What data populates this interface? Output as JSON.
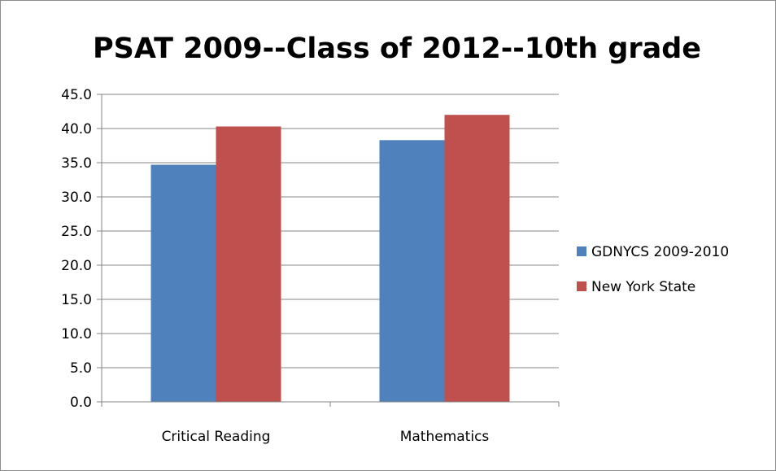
{
  "chart_data": {
    "type": "bar",
    "title": "PSAT 2009--Class of 2012--10th grade",
    "xlabel": "",
    "ylabel": "",
    "categories": [
      "Critical Reading",
      "Mathematics"
    ],
    "series": [
      {
        "name": "GDNYCS 2009-2010",
        "color": "#4f81bd",
        "values": [
          34.7,
          38.3
        ]
      },
      {
        "name": "New York State",
        "color": "#c0504d",
        "values": [
          40.3,
          42.0
        ]
      }
    ],
    "ylim": [
      0,
      45
    ],
    "ytick_step": 5,
    "ytick_labels": [
      "0.0",
      "5.0",
      "10.0",
      "15.0",
      "20.0",
      "25.0",
      "30.0",
      "35.0",
      "40.0",
      "45.0"
    ],
    "grid": true,
    "legend_position": "right"
  }
}
